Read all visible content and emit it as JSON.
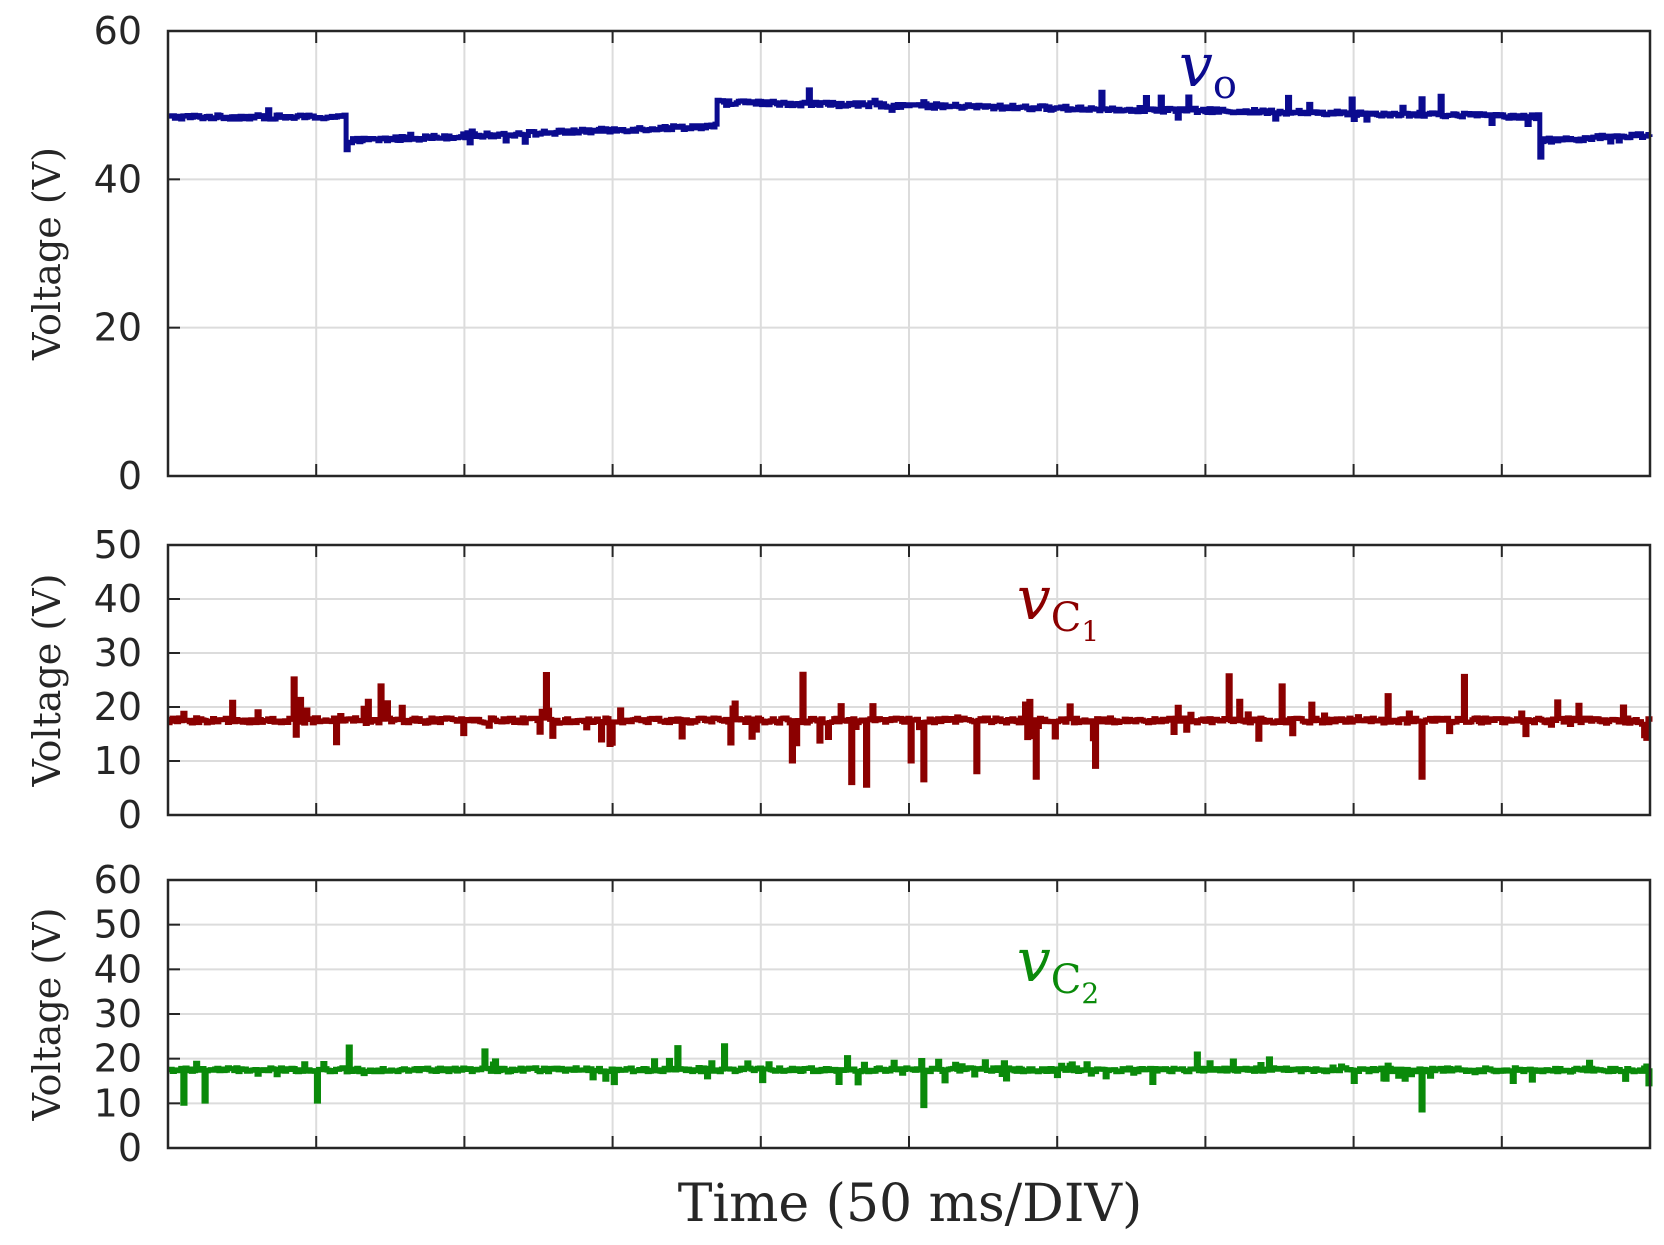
{
  "colors": {
    "vo": "#0b0b8f",
    "vc1": "#8b0000",
    "vc2": "#0a8a0a",
    "grid": "#dcdcdc",
    "axis": "#262626"
  },
  "chart_data": [
    {
      "type": "line",
      "title": "",
      "ylabel": "Voltage (V)",
      "ylim": [
        0,
        60
      ],
      "yticks": [
        "0",
        "20",
        "40",
        "60"
      ],
      "x_divisions": 10,
      "series": [
        {
          "name": "v_o",
          "label_main": "v",
          "label_sub": "o",
          "label_subsub": "",
          "segments": [
            {
              "x_start": 0.0,
              "x_end": 1.2,
              "start": 48.4,
              "end": 48.4
            },
            {
              "x_start": 1.2,
              "x_end": 3.7,
              "start": 45.2,
              "end": 47.2
            },
            {
              "x_start": 3.7,
              "x_end": 10.0,
              "start": 50.4,
              "end": 48.2
            }
          ],
          "dips": [
            {
              "x": 1.2,
              "v": 44.0
            },
            {
              "x": 9.25,
              "v": 43.0
            }
          ],
          "late_segment": {
            "x_start": 9.25,
            "x_end": 10.0,
            "start": 45.2,
            "end": 46.0
          },
          "noise": 0.6,
          "spike": 2.0
        }
      ]
    },
    {
      "type": "line",
      "ylabel": "Voltage (V)",
      "ylim": [
        0,
        50
      ],
      "yticks": [
        "0",
        "10",
        "20",
        "30",
        "40",
        "50"
      ],
      "x_divisions": 10,
      "series": [
        {
          "name": "v_C1",
          "label_main": "v",
          "label_sub": "C",
          "label_subsub": "1",
          "level": 17.5,
          "noise": 1.0,
          "spike_up": 9.0,
          "spike_down": 12.0,
          "deep_dips": [
            {
              "x": 4.2,
              "v": 10.0
            },
            {
              "x": 4.6,
              "v": 6.0
            },
            {
              "x": 4.7,
              "v": 5.5
            },
            {
              "x": 5.0,
              "v": 10.0
            },
            {
              "x": 5.1,
              "v": 6.5
            },
            {
              "x": 5.45,
              "v": 8.0
            },
            {
              "x": 5.85,
              "v": 7.0
            },
            {
              "x": 6.25,
              "v": 9.0
            },
            {
              "x": 8.45,
              "v": 7.0
            }
          ]
        }
      ]
    },
    {
      "type": "line",
      "ylabel": "Voltage (V)",
      "ylim": [
        0,
        60
      ],
      "yticks": [
        "0",
        "10",
        "20",
        "30",
        "40",
        "50",
        "60"
      ],
      "x_divisions": 10,
      "series": [
        {
          "name": "v_C2",
          "label_main": "v",
          "label_sub": "C",
          "label_subsub": "2",
          "level": 17.5,
          "noise": 0.9,
          "spike_up": 5.5,
          "spike_down": 8.0,
          "deep_dips": [
            {
              "x": 0.1,
              "v": 10.0
            },
            {
              "x": 0.25,
              "v": 10.5
            },
            {
              "x": 1.0,
              "v": 10.5
            },
            {
              "x": 5.1,
              "v": 9.5
            },
            {
              "x": 8.45,
              "v": 8.5
            }
          ]
        }
      ]
    }
  ],
  "xlabel": "Time (50 ms/DIV)"
}
